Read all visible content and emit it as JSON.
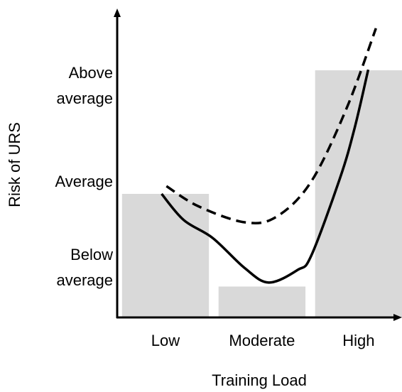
{
  "chart_data": {
    "type": "bar_line",
    "x_label": "Training Load",
    "y_label": "Risk of URS",
    "categories": [
      "Low",
      "Moderate",
      "High"
    ],
    "bars": {
      "color": "#d9d9d9",
      "values": [
        40,
        10,
        80
      ]
    },
    "series": [
      {
        "color": "#000000",
        "dash": false,
        "x": [
          -0.04,
          0.19,
          0.49,
          0.82,
          1.07,
          1.37,
          1.51,
          1.81,
          1.96,
          2.1
        ],
        "values": [
          40,
          31.5,
          25.7,
          16,
          11.3,
          15.4,
          20,
          45.3,
          61.4,
          80.2
        ]
      },
      {
        "color": "#000000",
        "dash": true,
        "x": [
          0.01,
          0.34,
          0.82,
          1.15,
          1.51,
          1.88,
          2.18
        ],
        "values": [
          42.5,
          36,
          30.8,
          32.6,
          44,
          68,
          93.6
        ]
      }
    ],
    "xlim": [
      -0.5,
      2.45
    ],
    "ylim": [
      0,
      100
    ],
    "yticks": [
      {
        "value": 16,
        "label": "Below average"
      },
      {
        "value": 44,
        "label": "Average"
      },
      {
        "value": 75,
        "label": "Above average"
      }
    ]
  }
}
